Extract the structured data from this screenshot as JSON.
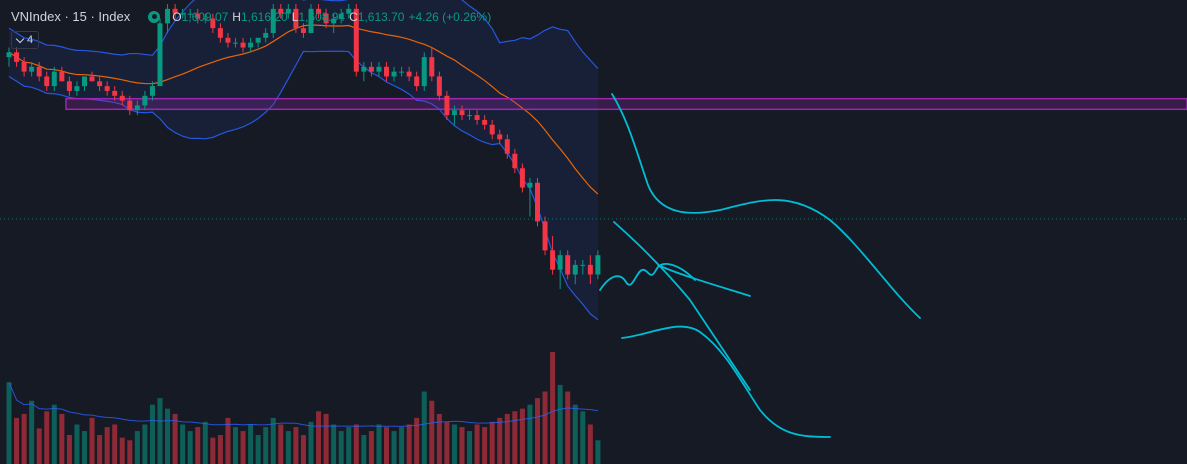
{
  "header": {
    "symbol": "VNIndex · 15 · Index",
    "open_label": "O",
    "open": "1,609.07",
    "high_label": "H",
    "high": "1,616.20",
    "low_label": "L",
    "low": "1,608.94",
    "close_label": "C",
    "close": "1,613.70",
    "change": "+4.26 (+0.26%)"
  },
  "indicators": {
    "count": "4"
  },
  "colors": {
    "up": "#089981",
    "down": "#f23645",
    "band": "#2962ff",
    "ma": "#ff6d00",
    "zone": "#9c27b0",
    "drawing": "#00bcd4"
  },
  "chart_data": {
    "type": "candlestick",
    "symbol": "VNIndex",
    "interval": "15",
    "ylim": [
      1575,
      1640
    ],
    "candles": [
      [
        1629,
        1631,
        1627,
        1630
      ],
      [
        1630,
        1631,
        1627,
        1628
      ],
      [
        1628,
        1629,
        1625,
        1626
      ],
      [
        1626,
        1628,
        1625,
        1627
      ],
      [
        1627,
        1628,
        1624,
        1625
      ],
      [
        1625,
        1626,
        1622,
        1623
      ],
      [
        1623,
        1627,
        1622,
        1626
      ],
      [
        1626,
        1627,
        1624,
        1624
      ],
      [
        1624,
        1625,
        1621,
        1622
      ],
      [
        1622,
        1624,
        1621,
        1623
      ],
      [
        1623,
        1625,
        1622,
        1625
      ],
      [
        1625,
        1626,
        1624,
        1624
      ],
      [
        1624,
        1625,
        1622,
        1623
      ],
      [
        1623,
        1624,
        1621,
        1622
      ],
      [
        1622,
        1623,
        1620,
        1621
      ],
      [
        1621,
        1622,
        1619,
        1620
      ],
      [
        1620,
        1621,
        1617,
        1618
      ],
      [
        1618,
        1620,
        1617,
        1619
      ],
      [
        1619,
        1622,
        1618,
        1621
      ],
      [
        1621,
        1624,
        1620,
        1623
      ],
      [
        1623,
        1637,
        1623,
        1636
      ],
      [
        1636,
        1640,
        1634,
        1639
      ],
      [
        1639,
        1640,
        1637,
        1638
      ],
      [
        1638,
        1639,
        1637,
        1638
      ],
      [
        1638,
        1639,
        1637,
        1638
      ],
      [
        1638,
        1639,
        1636,
        1637
      ],
      [
        1637,
        1638,
        1636,
        1637
      ],
      [
        1637,
        1638,
        1634,
        1635
      ],
      [
        1635,
        1636,
        1632,
        1633
      ],
      [
        1633,
        1634,
        1631,
        1632
      ],
      [
        1632,
        1633,
        1631,
        1632
      ],
      [
        1632,
        1633,
        1630,
        1631
      ],
      [
        1631,
        1633,
        1630,
        1632
      ],
      [
        1632,
        1633,
        1631,
        1633
      ],
      [
        1633,
        1635,
        1632,
        1634
      ],
      [
        1634,
        1640,
        1633,
        1639
      ],
      [
        1639,
        1640,
        1637,
        1638
      ],
      [
        1638,
        1640,
        1637,
        1639
      ],
      [
        1639,
        1640,
        1634,
        1635
      ],
      [
        1635,
        1636,
        1633,
        1634
      ],
      [
        1634,
        1640,
        1634,
        1639
      ],
      [
        1639,
        1640,
        1637,
        1638
      ],
      [
        1638,
        1639,
        1635,
        1636
      ],
      [
        1636,
        1638,
        1634,
        1637
      ],
      [
        1637,
        1639,
        1636,
        1638
      ],
      [
        1638,
        1640,
        1637,
        1639
      ],
      [
        1639,
        1640,
        1625,
        1626
      ],
      [
        1626,
        1628,
        1624,
        1627
      ],
      [
        1627,
        1628,
        1625,
        1626
      ],
      [
        1626,
        1628,
        1625,
        1627
      ],
      [
        1627,
        1628,
        1624,
        1625
      ],
      [
        1625,
        1627,
        1624,
        1626
      ],
      [
        1626,
        1627,
        1625,
        1626
      ],
      [
        1626,
        1627,
        1624,
        1625
      ],
      [
        1625,
        1626,
        1622,
        1623
      ],
      [
        1623,
        1630,
        1622,
        1629
      ],
      [
        1629,
        1631,
        1624,
        1625
      ],
      [
        1625,
        1626,
        1620,
        1621
      ],
      [
        1621,
        1622,
        1616,
        1617
      ],
      [
        1617,
        1619,
        1615,
        1618
      ],
      [
        1618,
        1619,
        1616,
        1617
      ],
      [
        1617,
        1618,
        1616,
        1617
      ],
      [
        1617,
        1618,
        1615,
        1616
      ],
      [
        1616,
        1617,
        1614,
        1615
      ],
      [
        1615,
        1616,
        1612,
        1613
      ],
      [
        1613,
        1614,
        1611,
        1612
      ],
      [
        1612,
        1613,
        1608,
        1609
      ],
      [
        1609,
        1610,
        1605,
        1606
      ],
      [
        1606,
        1607,
        1601,
        1602
      ],
      [
        1602,
        1604,
        1596,
        1603
      ],
      [
        1603,
        1604,
        1594,
        1595
      ],
      [
        1595,
        1596,
        1588,
        1589
      ],
      [
        1589,
        1592,
        1584,
        1585
      ],
      [
        1585,
        1589,
        1581,
        1588
      ],
      [
        1588,
        1589,
        1583,
        1584
      ],
      [
        1584,
        1587,
        1582,
        1586
      ],
      [
        1586,
        1587,
        1584,
        1586
      ],
      [
        1586,
        1588,
        1582,
        1584
      ],
      [
        1584,
        1589,
        1583,
        1588
      ]
    ],
    "volume": [
      62,
      35,
      38,
      48,
      27,
      40,
      45,
      38,
      22,
      30,
      25,
      35,
      22,
      28,
      30,
      20,
      18,
      25,
      30,
      45,
      50,
      42,
      38,
      30,
      25,
      28,
      32,
      20,
      22,
      35,
      28,
      25,
      30,
      22,
      28,
      35,
      30,
      25,
      28,
      22,
      32,
      40,
      38,
      30,
      25,
      28,
      30,
      22,
      25,
      30,
      28,
      25,
      28,
      30,
      35,
      55,
      48,
      38,
      32,
      30,
      28,
      25,
      30,
      28,
      32,
      35,
      38,
      40,
      42,
      45,
      50,
      55,
      85,
      60,
      55,
      45,
      40,
      30,
      18
    ],
    "bollinger": {
      "upper_start": 1632,
      "upper_end": 1612,
      "lower_start": 1619,
      "lower_end": 1580
    },
    "ma_label": "",
    "zone": {
      "from": 1618.2,
      "to": 1620.4
    },
    "current_price": 1595.5
  }
}
